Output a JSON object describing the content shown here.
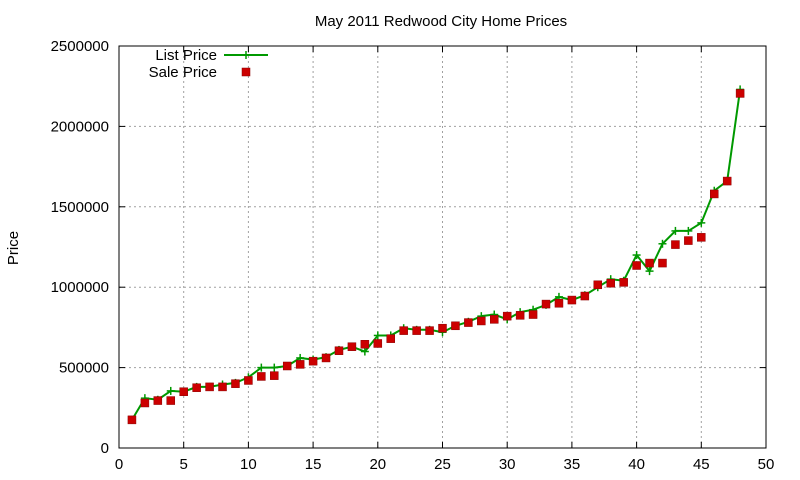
{
  "chart_data": {
    "type": "line",
    "title": "May 2011 Redwood City Home Prices",
    "xlabel": "",
    "ylabel": "Price",
    "xlim": [
      0,
      50
    ],
    "ylim": [
      0,
      2500000
    ],
    "x_ticks": [
      0,
      5,
      10,
      15,
      20,
      25,
      30,
      35,
      40,
      45,
      50
    ],
    "y_ticks": [
      0,
      500000,
      1000000,
      1500000,
      2000000,
      2500000
    ],
    "grid": true,
    "legend_position": "top-left",
    "x": [
      1,
      2,
      3,
      4,
      5,
      6,
      7,
      8,
      9,
      10,
      11,
      12,
      13,
      14,
      15,
      16,
      17,
      18,
      19,
      20,
      21,
      22,
      23,
      24,
      25,
      26,
      27,
      28,
      29,
      30,
      31,
      32,
      33,
      34,
      35,
      36,
      37,
      38,
      39,
      40,
      41,
      42,
      43,
      44,
      45,
      46,
      47,
      48
    ],
    "series": [
      {
        "name": "List Price",
        "style": "line+cross",
        "color": "#009900",
        "values": [
          175000,
          310000,
          300000,
          355000,
          350000,
          380000,
          380000,
          395000,
          405000,
          440000,
          500000,
          500000,
          510000,
          560000,
          550000,
          565000,
          610000,
          630000,
          600000,
          700000,
          700000,
          745000,
          735000,
          735000,
          720000,
          760000,
          785000,
          820000,
          830000,
          800000,
          845000,
          860000,
          890000,
          940000,
          920000,
          950000,
          1000000,
          1050000,
          1040000,
          1200000,
          1100000,
          1270000,
          1350000,
          1350000,
          1400000,
          1600000,
          1660000,
          2230000
        ]
      },
      {
        "name": "Sale Price",
        "style": "square",
        "color": "#cc0000",
        "values": [
          175000,
          280000,
          295000,
          295000,
          350000,
          375000,
          380000,
          380000,
          400000,
          420000,
          445000,
          450000,
          510000,
          520000,
          540000,
          560000,
          605000,
          630000,
          645000,
          650000,
          680000,
          730000,
          730000,
          730000,
          745000,
          760000,
          780000,
          790000,
          800000,
          820000,
          825000,
          830000,
          895000,
          900000,
          920000,
          945000,
          1015000,
          1025000,
          1030000,
          1135000,
          1150000,
          1150000,
          1265000,
          1290000,
          1310000,
          1580000,
          1660000,
          2205000
        ]
      }
    ]
  }
}
